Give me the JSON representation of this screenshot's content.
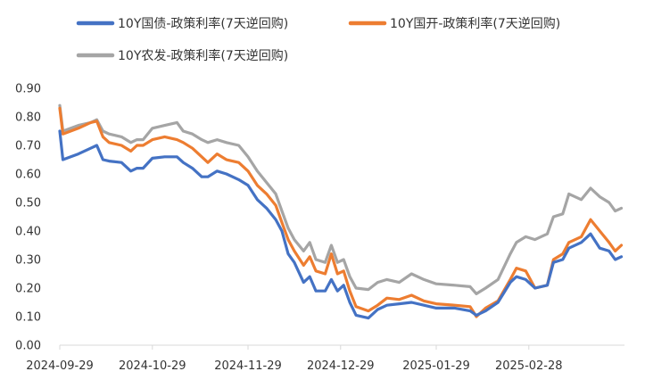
{
  "chart_data": {
    "type": "line",
    "title": "",
    "xlabel": "",
    "ylabel": "",
    "ylim": [
      0,
      0.9
    ],
    "yticks": [
      "0.00",
      "0.10",
      "0.20",
      "0.30",
      "0.40",
      "0.50",
      "0.60",
      "0.70",
      "0.80",
      "0.90"
    ],
    "xlim": [
      "2024-09-29",
      "2025-03-31"
    ],
    "xticks": [
      "2024-09-29",
      "2024-10-29",
      "2024-11-29",
      "2024-12-29",
      "2025-01-29",
      "2025-02-28"
    ],
    "grid": false,
    "legend": "top",
    "series": [
      {
        "name": "10Y国债-政策利率(7天逆回购)",
        "color": "#4472C4",
        "points": [
          [
            "2024-09-29",
            0.75
          ],
          [
            "2024-09-30",
            0.65
          ],
          [
            "2024-10-05",
            0.67
          ],
          [
            "2024-10-09",
            0.69
          ],
          [
            "2024-10-11",
            0.7
          ],
          [
            "2024-10-13",
            0.65
          ],
          [
            "2024-10-15",
            0.645
          ],
          [
            "2024-10-19",
            0.64
          ],
          [
            "2024-10-22",
            0.61
          ],
          [
            "2024-10-24",
            0.62
          ],
          [
            "2024-10-26",
            0.62
          ],
          [
            "2024-10-29",
            0.655
          ],
          [
            "2024-11-02",
            0.66
          ],
          [
            "2024-11-06",
            0.66
          ],
          [
            "2024-11-08",
            0.64
          ],
          [
            "2024-11-11",
            0.62
          ],
          [
            "2024-11-14",
            0.59
          ],
          [
            "2024-11-16",
            0.59
          ],
          [
            "2024-11-19",
            0.61
          ],
          [
            "2024-11-22",
            0.6
          ],
          [
            "2024-11-26",
            0.58
          ],
          [
            "2024-11-29",
            0.56
          ],
          [
            "2024-12-02",
            0.51
          ],
          [
            "2024-12-05",
            0.48
          ],
          [
            "2024-12-08",
            0.44
          ],
          [
            "2024-12-10",
            0.4
          ],
          [
            "2024-12-12",
            0.32
          ],
          [
            "2024-12-14",
            0.29
          ],
          [
            "2024-12-17",
            0.22
          ],
          [
            "2024-12-19",
            0.24
          ],
          [
            "2024-12-21",
            0.19
          ],
          [
            "2024-12-24",
            0.19
          ],
          [
            "2024-12-26",
            0.23
          ],
          [
            "2024-12-28",
            0.19
          ],
          [
            "2024-12-30",
            0.21
          ],
          [
            "2025-01-01",
            0.15
          ],
          [
            "2025-01-03",
            0.105
          ],
          [
            "2025-01-07",
            0.095
          ],
          [
            "2025-01-10",
            0.125
          ],
          [
            "2025-01-13",
            0.14
          ],
          [
            "2025-01-17",
            0.145
          ],
          [
            "2025-01-21",
            0.15
          ],
          [
            "2025-01-25",
            0.14
          ],
          [
            "2025-01-29",
            0.13
          ],
          [
            "2025-02-04",
            0.13
          ],
          [
            "2025-02-09",
            0.12
          ],
          [
            "2025-02-11",
            0.105
          ],
          [
            "2025-02-14",
            0.12
          ],
          [
            "2025-02-18",
            0.15
          ],
          [
            "2025-02-22",
            0.22
          ],
          [
            "2025-02-24",
            0.24
          ],
          [
            "2025-02-27",
            0.23
          ],
          [
            "2025-03-02",
            0.2
          ],
          [
            "2025-03-06",
            0.21
          ],
          [
            "2025-03-08",
            0.29
          ],
          [
            "2025-03-11",
            0.3
          ],
          [
            "2025-03-13",
            0.34
          ],
          [
            "2025-03-17",
            0.36
          ],
          [
            "2025-03-20",
            0.39
          ],
          [
            "2025-03-23",
            0.34
          ],
          [
            "2025-03-26",
            0.33
          ],
          [
            "2025-03-28",
            0.3
          ],
          [
            "2025-03-30",
            0.31
          ]
        ]
      },
      {
        "name": "10Y国开-政策利率(7天逆回购)",
        "color": "#ED7D31",
        "points": [
          [
            "2024-09-29",
            0.83
          ],
          [
            "2024-09-30",
            0.74
          ],
          [
            "2024-10-05",
            0.76
          ],
          [
            "2024-10-09",
            0.78
          ],
          [
            "2024-10-11",
            0.785
          ],
          [
            "2024-10-13",
            0.73
          ],
          [
            "2024-10-15",
            0.71
          ],
          [
            "2024-10-19",
            0.7
          ],
          [
            "2024-10-22",
            0.68
          ],
          [
            "2024-10-24",
            0.7
          ],
          [
            "2024-10-26",
            0.7
          ],
          [
            "2024-10-29",
            0.72
          ],
          [
            "2024-11-02",
            0.73
          ],
          [
            "2024-11-06",
            0.72
          ],
          [
            "2024-11-08",
            0.71
          ],
          [
            "2024-11-11",
            0.69
          ],
          [
            "2024-11-14",
            0.66
          ],
          [
            "2024-11-16",
            0.64
          ],
          [
            "2024-11-19",
            0.67
          ],
          [
            "2024-11-22",
            0.65
          ],
          [
            "2024-11-26",
            0.64
          ],
          [
            "2024-11-29",
            0.61
          ],
          [
            "2024-12-02",
            0.56
          ],
          [
            "2024-12-05",
            0.53
          ],
          [
            "2024-12-08",
            0.49
          ],
          [
            "2024-12-10",
            0.43
          ],
          [
            "2024-12-12",
            0.37
          ],
          [
            "2024-12-14",
            0.33
          ],
          [
            "2024-12-17",
            0.28
          ],
          [
            "2024-12-19",
            0.31
          ],
          [
            "2024-12-21",
            0.26
          ],
          [
            "2024-12-24",
            0.25
          ],
          [
            "2024-12-26",
            0.32
          ],
          [
            "2024-12-28",
            0.25
          ],
          [
            "2024-12-30",
            0.26
          ],
          [
            "2025-01-01",
            0.19
          ],
          [
            "2025-01-03",
            0.135
          ],
          [
            "2025-01-07",
            0.12
          ],
          [
            "2025-01-10",
            0.14
          ],
          [
            "2025-01-13",
            0.165
          ],
          [
            "2025-01-17",
            0.16
          ],
          [
            "2025-01-21",
            0.175
          ],
          [
            "2025-01-25",
            0.155
          ],
          [
            "2025-01-29",
            0.145
          ],
          [
            "2025-02-04",
            0.14
          ],
          [
            "2025-02-09",
            0.135
          ],
          [
            "2025-02-11",
            0.1
          ],
          [
            "2025-02-14",
            0.13
          ],
          [
            "2025-02-18",
            0.155
          ],
          [
            "2025-02-22",
            0.23
          ],
          [
            "2025-02-24",
            0.27
          ],
          [
            "2025-02-27",
            0.26
          ],
          [
            "2025-03-02",
            0.2
          ],
          [
            "2025-03-06",
            0.21
          ],
          [
            "2025-03-08",
            0.3
          ],
          [
            "2025-03-11",
            0.32
          ],
          [
            "2025-03-13",
            0.36
          ],
          [
            "2025-03-17",
            0.38
          ],
          [
            "2025-03-20",
            0.44
          ],
          [
            "2025-03-23",
            0.4
          ],
          [
            "2025-03-26",
            0.36
          ],
          [
            "2025-03-28",
            0.33
          ],
          [
            "2025-03-30",
            0.35
          ]
        ]
      },
      {
        "name": "10Y农发-政策利率(7天逆回购)",
        "color": "#A5A5A5",
        "points": [
          [
            "2024-09-29",
            0.84
          ],
          [
            "2024-09-30",
            0.75
          ],
          [
            "2024-10-05",
            0.77
          ],
          [
            "2024-10-09",
            0.78
          ],
          [
            "2024-10-11",
            0.79
          ],
          [
            "2024-10-13",
            0.75
          ],
          [
            "2024-10-15",
            0.74
          ],
          [
            "2024-10-19",
            0.73
          ],
          [
            "2024-10-22",
            0.71
          ],
          [
            "2024-10-24",
            0.72
          ],
          [
            "2024-10-26",
            0.72
          ],
          [
            "2024-10-29",
            0.76
          ],
          [
            "2024-11-02",
            0.77
          ],
          [
            "2024-11-06",
            0.78
          ],
          [
            "2024-11-08",
            0.75
          ],
          [
            "2024-11-11",
            0.74
          ],
          [
            "2024-11-14",
            0.72
          ],
          [
            "2024-11-16",
            0.71
          ],
          [
            "2024-11-19",
            0.72
          ],
          [
            "2024-11-22",
            0.71
          ],
          [
            "2024-11-26",
            0.7
          ],
          [
            "2024-11-29",
            0.66
          ],
          [
            "2024-12-02",
            0.61
          ],
          [
            "2024-12-05",
            0.57
          ],
          [
            "2024-12-08",
            0.53
          ],
          [
            "2024-12-10",
            0.47
          ],
          [
            "2024-12-12",
            0.41
          ],
          [
            "2024-12-14",
            0.37
          ],
          [
            "2024-12-17",
            0.33
          ],
          [
            "2024-12-19",
            0.36
          ],
          [
            "2024-12-21",
            0.3
          ],
          [
            "2024-12-24",
            0.29
          ],
          [
            "2024-12-26",
            0.35
          ],
          [
            "2024-12-28",
            0.29
          ],
          [
            "2024-12-30",
            0.3
          ],
          [
            "2025-01-01",
            0.24
          ],
          [
            "2025-01-03",
            0.2
          ],
          [
            "2025-01-07",
            0.195
          ],
          [
            "2025-01-10",
            0.22
          ],
          [
            "2025-01-13",
            0.23
          ],
          [
            "2025-01-17",
            0.22
          ],
          [
            "2025-01-21",
            0.25
          ],
          [
            "2025-01-25",
            0.23
          ],
          [
            "2025-01-29",
            0.215
          ],
          [
            "2025-02-04",
            0.21
          ],
          [
            "2025-02-09",
            0.205
          ],
          [
            "2025-02-11",
            0.18
          ],
          [
            "2025-02-14",
            0.2
          ],
          [
            "2025-02-18",
            0.23
          ],
          [
            "2025-02-22",
            0.32
          ],
          [
            "2025-02-24",
            0.36
          ],
          [
            "2025-02-27",
            0.38
          ],
          [
            "2025-03-02",
            0.37
          ],
          [
            "2025-03-06",
            0.39
          ],
          [
            "2025-03-08",
            0.45
          ],
          [
            "2025-03-11",
            0.46
          ],
          [
            "2025-03-13",
            0.53
          ],
          [
            "2025-03-17",
            0.51
          ],
          [
            "2025-03-20",
            0.55
          ],
          [
            "2025-03-23",
            0.52
          ],
          [
            "2025-03-26",
            0.5
          ],
          [
            "2025-03-28",
            0.47
          ],
          [
            "2025-03-30",
            0.48
          ]
        ]
      }
    ]
  }
}
